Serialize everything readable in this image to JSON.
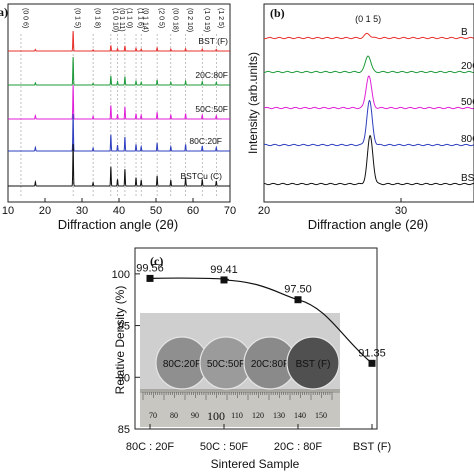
{
  "chart_data": [
    {
      "panel": "a",
      "type": "line",
      "xlabel": "Diffraction angle (2θ)",
      "xlim": [
        10,
        70
      ],
      "xticks": [
        10,
        20,
        30,
        40,
        50,
        60,
        70
      ],
      "peak_labels": [
        {
          "x": 13.5,
          "text": "(0 0 6)"
        },
        {
          "x": 27.6,
          "text": "(0 1 5)"
        },
        {
          "x": 33.0,
          "text": "(0 1 8)"
        },
        {
          "x": 37.8,
          "text": "(1 0 10)"
        },
        {
          "x": 39.6,
          "text": "(0 1 11)"
        },
        {
          "x": 41.6,
          "text": "(1 1 0)"
        },
        {
          "x": 44.6,
          "text": "(1 1 6)"
        },
        {
          "x": 46.0,
          "text": "(0 1 14)"
        },
        {
          "x": 50.3,
          "text": "(2 0 5)"
        },
        {
          "x": 54.0,
          "text": "(0 0 18)"
        },
        {
          "x": 58.0,
          "text": "(0 2 10)"
        },
        {
          "x": 62.5,
          "text": "(1 0 19)"
        },
        {
          "x": 66.3,
          "text": "(1 2 5)"
        }
      ],
      "series": [
        {
          "name": "BST (F)",
          "color": "#e8302c",
          "peaks": [
            [
              17.4,
              0.08
            ],
            [
              27.6,
              1.0
            ],
            [
              33.0,
              0.06
            ],
            [
              37.8,
              0.28
            ],
            [
              39.6,
              0.12
            ],
            [
              41.6,
              0.26
            ],
            [
              44.6,
              0.14
            ],
            [
              46.0,
              0.1
            ],
            [
              50.3,
              0.16
            ],
            [
              54.0,
              0.1
            ],
            [
              58.0,
              0.12
            ],
            [
              62.5,
              0.1
            ],
            [
              66.3,
              0.08
            ]
          ]
        },
        {
          "name": "20C:80F",
          "color": "#1e9a3a",
          "peaks": [
            [
              17.4,
              0.08
            ],
            [
              27.6,
              1.0
            ],
            [
              33.0,
              0.06
            ],
            [
              37.8,
              0.32
            ],
            [
              39.6,
              0.12
            ],
            [
              41.6,
              0.3
            ],
            [
              44.6,
              0.14
            ],
            [
              46.0,
              0.1
            ],
            [
              50.3,
              0.18
            ],
            [
              54.0,
              0.1
            ],
            [
              58.0,
              0.14
            ],
            [
              62.5,
              0.12
            ],
            [
              66.3,
              0.1
            ]
          ]
        },
        {
          "name": "50C:50F",
          "color": "#e020d8",
          "peaks": [
            [
              17.4,
              0.1
            ],
            [
              27.6,
              1.0
            ],
            [
              33.0,
              0.08
            ],
            [
              37.8,
              0.4
            ],
            [
              39.6,
              0.14
            ],
            [
              41.6,
              0.36
            ],
            [
              44.6,
              0.16
            ],
            [
              46.0,
              0.12
            ],
            [
              50.3,
              0.2
            ],
            [
              54.0,
              0.12
            ],
            [
              58.0,
              0.16
            ],
            [
              62.5,
              0.12
            ],
            [
              66.3,
              0.1
            ]
          ]
        },
        {
          "name": "80C:20F",
          "color": "#2e3fbf",
          "peaks": [
            [
              17.4,
              0.1
            ],
            [
              27.6,
              1.0
            ],
            [
              33.0,
              0.08
            ],
            [
              37.8,
              0.44
            ],
            [
              39.6,
              0.16
            ],
            [
              41.6,
              0.38
            ],
            [
              44.6,
              0.18
            ],
            [
              46.0,
              0.12
            ],
            [
              50.3,
              0.22
            ],
            [
              54.0,
              0.12
            ],
            [
              58.0,
              0.18
            ],
            [
              62.5,
              0.14
            ],
            [
              66.3,
              0.1
            ]
          ]
        },
        {
          "name": "BSTCu (C)",
          "color": "#111111",
          "peaks": [
            [
              17.4,
              0.1
            ],
            [
              27.6,
              1.0
            ],
            [
              33.0,
              0.08
            ],
            [
              37.8,
              0.46
            ],
            [
              39.6,
              0.16
            ],
            [
              41.6,
              0.4
            ],
            [
              44.6,
              0.2
            ],
            [
              46.0,
              0.14
            ],
            [
              50.3,
              0.24
            ],
            [
              54.0,
              0.14
            ],
            [
              58.0,
              0.2
            ],
            [
              62.5,
              0.16
            ],
            [
              66.3,
              0.12
            ]
          ]
        }
      ]
    },
    {
      "panel": "b",
      "type": "line",
      "xlabel": "Diffraction angle (2θ)",
      "ylabel": "Intensity (arb.units)",
      "xlim": [
        20,
        35
      ],
      "xticks": [
        20,
        30
      ],
      "peak_labels": [
        {
          "x": 27.6,
          "text": "(0 1 5)"
        }
      ],
      "series": [
        {
          "name": "BST (F)",
          "visible_label": "B",
          "color": "#e8302c",
          "peak": [
            27.55,
            0.55
          ]
        },
        {
          "name": "20C:80F",
          "visible_label": "20C",
          "color": "#1e9a3a",
          "peak": [
            27.6,
            0.75
          ]
        },
        {
          "name": "50C:50F",
          "visible_label": "50C",
          "color": "#e020d8",
          "peak": [
            27.65,
            0.95
          ]
        },
        {
          "name": "80C:20F",
          "visible_label": "80C",
          "color": "#2e3fbf",
          "peak": [
            27.7,
            1.0
          ]
        },
        {
          "name": "BSTCu (C)",
          "visible_label": "BST",
          "color": "#111111",
          "peak": [
            27.75,
            1.0
          ]
        }
      ]
    },
    {
      "panel": "c",
      "type": "line",
      "xlabel": "Sintered Sample",
      "ylabel": "Relative Density (%)",
      "categories": [
        "80C : 20F",
        "50C : 50F",
        "20C : 80F",
        "BST (F)"
      ],
      "values": [
        99.56,
        99.41,
        97.5,
        91.35
      ],
      "data_labels": [
        "99.56",
        "99.41",
        "97.50",
        "91.35"
      ],
      "ylim": [
        85,
        102.5
      ],
      "yticks": [
        85,
        90,
        95,
        100
      ],
      "inset_photo": {
        "pellet_labels": [
          "80C:20F",
          "50C:50F",
          "20C:80F",
          "BST (F)"
        ],
        "ruler_numbers": [
          "70",
          "80",
          "90",
          "100",
          "110",
          "120",
          "130",
          "140",
          "150"
        ]
      }
    }
  ],
  "panel_labels": {
    "a": "a)",
    "b": "(b)",
    "c": "(c)"
  }
}
